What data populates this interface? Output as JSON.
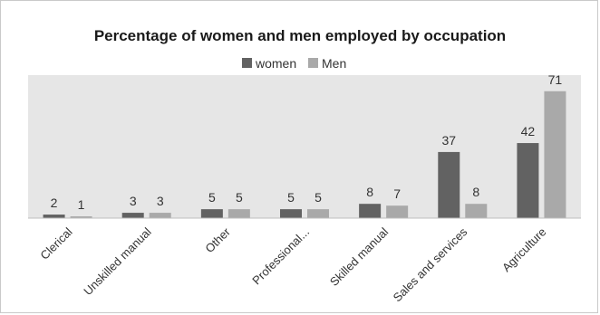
{
  "chart_data": {
    "type": "bar",
    "title": "Percentage of women and men employed by occupation",
    "categories": [
      "Clerical",
      "Unskilled manual",
      "Other",
      "Professional...",
      "Skilled manual",
      "Sales and services",
      "Agriculture"
    ],
    "series": [
      {
        "name": "women",
        "values": [
          2,
          3,
          5,
          5,
          8,
          37,
          42
        ],
        "color": "#626262"
      },
      {
        "name": "Men",
        "values": [
          1,
          3,
          5,
          5,
          7,
          8,
          71
        ],
        "color": "#a9a9a9"
      }
    ],
    "xlabel": "",
    "ylabel": "",
    "ylim": [
      0,
      80
    ],
    "grid": false,
    "legend_position": "top-center",
    "plot_background": "#e6e6e6",
    "show_data_labels": true
  }
}
